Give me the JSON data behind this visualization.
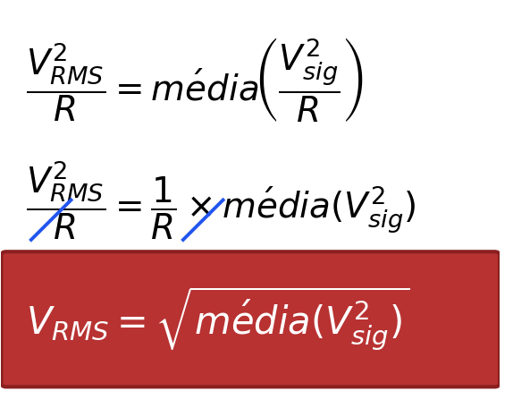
{
  "bg_color": "#ffffff",
  "red_box_color": "#b83232",
  "red_box_edge_color": "#8b2020",
  "white_text_color": "#ffffff",
  "black_text_color": "#000000",
  "blue_line_color": "#2255ee",
  "fig_width": 5.74,
  "fig_height": 4.47,
  "dpi": 100
}
